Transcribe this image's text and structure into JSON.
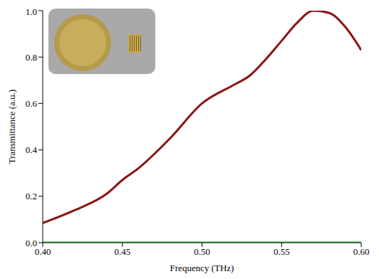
{
  "chart_data": {
    "type": "line",
    "x_label": "Frequency (THz)",
    "y_label": "Transmittance (a.u.)",
    "x": [
      0.4,
      0.42,
      0.44,
      0.45,
      0.46,
      0.48,
      0.5,
      0.52,
      0.53,
      0.54,
      0.55,
      0.56,
      0.57,
      0.58,
      0.59,
      0.6
    ],
    "series": [
      {
        "color": "#8b1414",
        "values": [
          0.085,
          0.14,
          0.21,
          0.27,
          0.32,
          0.45,
          0.6,
          0.68,
          0.72,
          0.79,
          0.87,
          0.95,
          1.0,
          0.99,
          0.93,
          0.83
        ]
      },
      {
        "color": "#22c02a",
        "values": [
          0,
          0,
          0,
          0,
          0,
          0,
          0,
          0,
          0,
          0,
          0,
          0,
          0,
          0,
          0,
          0
        ]
      }
    ],
    "xlim": [
      0.4,
      0.6
    ],
    "xticks": [
      {
        "value": 0.4,
        "label": "0.40"
      },
      {
        "value": 0.45,
        "label": "0.45"
      },
      {
        "value": 0.5,
        "label": "0.50"
      },
      {
        "value": 0.55,
        "label": "0.55"
      },
      {
        "value": 0.6,
        "label": "0.60"
      }
    ],
    "ylim": [
      0,
      1
    ],
    "yticks": [
      {
        "value": 0,
        "label": "0.0"
      },
      {
        "value": 0.2,
        "label": "0.2"
      },
      {
        "value": 0.4,
        "label": "0.4"
      },
      {
        "value": 0.6,
        "label": "0.6"
      },
      {
        "value": 0.8,
        "label": "0.8"
      },
      {
        "value": 1,
        "label": "1.0"
      }
    ],
    "grid": false
  }
}
